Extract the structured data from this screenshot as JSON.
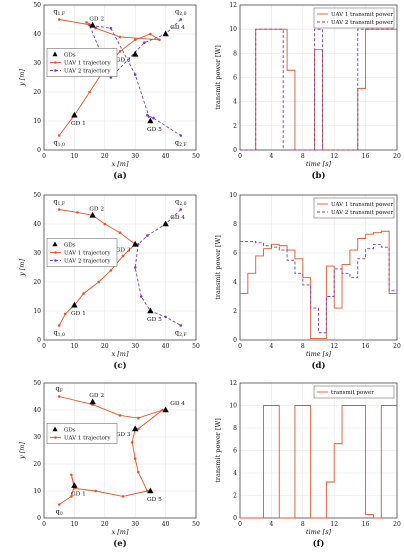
{
  "chart_data": [
    {
      "panel": "(a)",
      "type": "scatter",
      "xlabel": "x [m]",
      "ylabel": "y [m]",
      "xlim": [
        0,
        50
      ],
      "ylim": [
        0,
        50
      ],
      "xticks": [
        0,
        10,
        20,
        30,
        40,
        50
      ],
      "yticks": [
        0,
        10,
        20,
        30,
        40,
        50
      ],
      "grid": true,
      "legend": {
        "position": "left",
        "entries": [
          "GDs",
          "UAV 1 trajectory",
          "UAV 2 trajectory"
        ]
      },
      "gds": [
        {
          "label": "GD 1",
          "x": 10,
          "y": 12
        },
        {
          "label": "GD 2",
          "x": 16,
          "y": 43
        },
        {
          "label": "GD 3",
          "x": 30,
          "y": 33
        },
        {
          "label": "GD 4",
          "x": 40,
          "y": 40
        },
        {
          "label": "GD 5",
          "x": 35,
          "y": 10
        }
      ],
      "series": [
        {
          "name": "UAV 1 trajectory",
          "color": "#e8542a",
          "style": "solid",
          "marker": "dot",
          "x": [
            5,
            10,
            15,
            20,
            25,
            30,
            35,
            38,
            25,
            17,
            14,
            16,
            5
          ],
          "y": [
            5,
            12,
            20,
            28,
            34,
            38,
            40,
            38,
            39,
            42,
            44,
            43,
            45
          ]
        },
        {
          "name": "UAV 2 trajectory",
          "color": "#7b3fb5",
          "style": "dashed",
          "marker": "dot",
          "x": [
            45,
            40,
            33,
            22,
            15,
            22,
            30,
            35,
            34,
            36,
            45
          ],
          "y": [
            45,
            40,
            37,
            25,
            43,
            42,
            26,
            10,
            12,
            11,
            5
          ]
        }
      ],
      "annotations": [
        {
          "text": "q_{1,F}",
          "x": 5,
          "y": 45
        },
        {
          "text": "q_{2,0}",
          "x": 45,
          "y": 45
        },
        {
          "text": "q_{1,0}",
          "x": 5,
          "y": 5
        },
        {
          "text": "q_{2,F}",
          "x": 45,
          "y": 5
        }
      ]
    },
    {
      "panel": "(b)",
      "type": "line",
      "xlabel": "time [s]",
      "ylabel": "transmit power [W]",
      "xlim": [
        0,
        20
      ],
      "ylim": [
        0,
        12
      ],
      "xticks": [
        0,
        4,
        8,
        12,
        16,
        20
      ],
      "yticks": [
        0,
        2,
        4,
        6,
        8,
        10,
        12
      ],
      "grid": true,
      "legend": {
        "position": "top-right",
        "entries": [
          "UAV 1 transmit power",
          "UAV 2 transmit power"
        ]
      },
      "series": [
        {
          "name": "UAV 1 transmit power",
          "color": "#e8542a",
          "style": "solid",
          "x": [
            0,
            2,
            2,
            6,
            6,
            7,
            7,
            9.5,
            9.5,
            10.5,
            10.5,
            15,
            15,
            16,
            16,
            20
          ],
          "y": [
            0,
            0,
            10,
            10,
            6.6,
            6.6,
            0,
            0,
            8.3,
            8.3,
            0,
            0,
            5.1,
            5.1,
            10,
            10
          ]
        },
        {
          "name": "UAV 2 transmit power",
          "color": "#7b3fb5",
          "style": "dashed",
          "x": [
            0,
            2,
            2,
            5.5,
            5.5,
            9.5,
            9.5,
            10.5,
            10.5,
            15,
            15,
            20
          ],
          "y": [
            0,
            0,
            10,
            10,
            0,
            0,
            10,
            10,
            0,
            0,
            10,
            10
          ]
        }
      ]
    },
    {
      "panel": "(c)",
      "type": "scatter",
      "xlabel": "x [m]",
      "ylabel": "y [m]",
      "xlim": [
        0,
        50
      ],
      "ylim": [
        0,
        50
      ],
      "xticks": [
        0,
        10,
        20,
        30,
        40,
        50
      ],
      "yticks": [
        0,
        10,
        20,
        30,
        40,
        50
      ],
      "grid": true,
      "legend": {
        "position": "left",
        "entries": [
          "GDs",
          "UAV 1 trajectory",
          "UAV 2 trajectory"
        ]
      },
      "gds": [
        {
          "label": "GD 1",
          "x": 10,
          "y": 12
        },
        {
          "label": "GD 2",
          "x": 16,
          "y": 43
        },
        {
          "label": "GD 3",
          "x": 30,
          "y": 33
        },
        {
          "label": "GD 4",
          "x": 40,
          "y": 40
        },
        {
          "label": "GD 5",
          "x": 35,
          "y": 10
        }
      ],
      "series": [
        {
          "name": "UAV 1 trajectory",
          "color": "#e8542a",
          "style": "solid",
          "marker": "dot",
          "x": [
            5,
            7,
            10,
            13,
            18,
            22,
            26,
            30,
            25,
            20,
            16,
            11,
            5
          ],
          "y": [
            5,
            9,
            12,
            16,
            20,
            24,
            29,
            33,
            37,
            40,
            43,
            44,
            45
          ]
        },
        {
          "name": "UAV 2 trajectory",
          "color": "#7b3fb5",
          "style": "dashed",
          "marker": "dot",
          "x": [
            45,
            40,
            34,
            31,
            30,
            32,
            35,
            40,
            45
          ],
          "y": [
            45,
            40,
            36,
            33,
            25,
            15,
            10,
            8,
            5
          ]
        }
      ],
      "annotations": [
        {
          "text": "q_{1,F}",
          "x": 5,
          "y": 45
        },
        {
          "text": "q_{2,0}",
          "x": 45,
          "y": 45
        },
        {
          "text": "q_{1,0}",
          "x": 5,
          "y": 5
        },
        {
          "text": "q_{2,F}",
          "x": 45,
          "y": 5
        }
      ]
    },
    {
      "panel": "(d)",
      "type": "line",
      "xlabel": "time [s]",
      "ylabel": "transmit power [W]",
      "xlim": [
        0,
        20
      ],
      "ylim": [
        0,
        10
      ],
      "xticks": [
        0,
        4,
        8,
        12,
        16,
        20
      ],
      "yticks": [
        0,
        2,
        4,
        6,
        8,
        10
      ],
      "grid": true,
      "legend": {
        "position": "top-right",
        "entries": [
          "UAV 1 transmit power",
          "UAV 2 transmit power"
        ]
      },
      "series": [
        {
          "name": "UAV 1 transmit power",
          "color": "#e8542a",
          "style": "solid",
          "x": [
            0,
            1,
            1,
            2,
            2,
            3,
            3,
            4,
            4,
            5,
            5,
            6,
            6,
            7,
            7,
            8,
            8,
            9,
            9,
            10,
            10,
            11,
            11,
            12,
            12,
            13,
            13,
            14,
            14,
            15,
            15,
            16,
            16,
            17,
            17,
            18,
            18,
            19,
            19,
            20
          ],
          "y": [
            3.2,
            3.2,
            4.6,
            4.6,
            5.8,
            5.8,
            6.3,
            6.3,
            6.6,
            6.6,
            6.5,
            6.5,
            6.2,
            6.2,
            5.6,
            5.6,
            4.3,
            4.3,
            0.1,
            0.1,
            0.1,
            0.1,
            5.1,
            5.1,
            2.2,
            2.2,
            5.2,
            5.2,
            6.2,
            6.2,
            7.0,
            7.0,
            7.3,
            7.3,
            7.4,
            7.4,
            7.5,
            7.5,
            3.2,
            3.2
          ]
        },
        {
          "name": "UAV 2 transmit power",
          "color": "#7b3fb5",
          "style": "dashed",
          "x": [
            0,
            2,
            2,
            3,
            3,
            4,
            4,
            5,
            5,
            6,
            6,
            7,
            7,
            8,
            8,
            9,
            9,
            10,
            10,
            11,
            11,
            12,
            12,
            13,
            13,
            14,
            14,
            15,
            15,
            16,
            16,
            17,
            17,
            18,
            18,
            19,
            19,
            20
          ],
          "y": [
            6.8,
            6.8,
            6.7,
            6.7,
            6.5,
            6.5,
            6.4,
            6.4,
            6.2,
            6.2,
            5.5,
            5.5,
            4.6,
            4.6,
            3.8,
            3.8,
            2.2,
            2.2,
            0.5,
            0.5,
            3.0,
            3.0,
            4.9,
            4.9,
            4.6,
            4.6,
            4.3,
            4.3,
            5.6,
            5.6,
            6.3,
            6.3,
            6.6,
            6.6,
            6.4,
            6.4,
            3.4,
            3.4
          ]
        }
      ]
    },
    {
      "panel": "(e)",
      "type": "scatter",
      "xlabel": "x [m]",
      "ylabel": "y [m]",
      "xlim": [
        0,
        50
      ],
      "ylim": [
        0,
        50
      ],
      "xticks": [
        0,
        10,
        20,
        30,
        40,
        50
      ],
      "yticks": [
        0,
        10,
        20,
        30,
        40,
        50
      ],
      "grid": true,
      "legend": {
        "position": "left",
        "entries": [
          "GDs",
          "UAV 1 trajectory"
        ]
      },
      "gds": [
        {
          "label": "GD 1",
          "x": 10,
          "y": 12
        },
        {
          "label": "GD 2",
          "x": 16,
          "y": 43
        },
        {
          "label": "GD 3",
          "x": 30,
          "y": 33
        },
        {
          "label": "GD 4",
          "x": 40,
          "y": 40
        },
        {
          "label": "GD 5",
          "x": 35,
          "y": 10
        }
      ],
      "series": [
        {
          "name": "UAV 1 trajectory",
          "color": "#e8542a",
          "style": "solid",
          "marker": "dot",
          "x": [
            5,
            9,
            10,
            9,
            10,
            17,
            26,
            34,
            31,
            30,
            29,
            30,
            31,
            39,
            31,
            25,
            16,
            5
          ],
          "y": [
            5,
            8,
            12,
            16,
            11,
            10,
            8,
            10,
            17,
            22,
            28,
            33,
            33,
            40,
            37,
            38,
            42,
            45
          ]
        }
      ],
      "annotations": [
        {
          "text": "q_F",
          "x": 5,
          "y": 45
        },
        {
          "text": "q_0",
          "x": 5,
          "y": 5
        }
      ]
    },
    {
      "panel": "(f)",
      "type": "line",
      "xlabel": "time [s]",
      "ylabel": "transmit power [W]",
      "xlim": [
        0,
        20
      ],
      "ylim": [
        0,
        12
      ],
      "xticks": [
        0,
        4,
        8,
        12,
        16,
        20
      ],
      "yticks": [
        0,
        2,
        4,
        6,
        8,
        10,
        12
      ],
      "grid": true,
      "legend": {
        "position": "top-right",
        "entries": [
          "transmit power"
        ]
      },
      "series": [
        {
          "name": "transmit power",
          "color": "#e8542a",
          "style": "solid",
          "x": [
            0,
            3,
            3,
            5,
            5,
            7,
            7,
            9,
            9,
            11,
            11,
            12,
            12,
            13,
            13,
            16,
            16,
            17,
            17,
            18,
            18,
            20
          ],
          "y": [
            0,
            0,
            10,
            10,
            0,
            0,
            10,
            10,
            0,
            0,
            3.2,
            3.2,
            6.6,
            6.6,
            10,
            10,
            0.3,
            0.3,
            0,
            0,
            10,
            10
          ]
        }
      ]
    }
  ]
}
